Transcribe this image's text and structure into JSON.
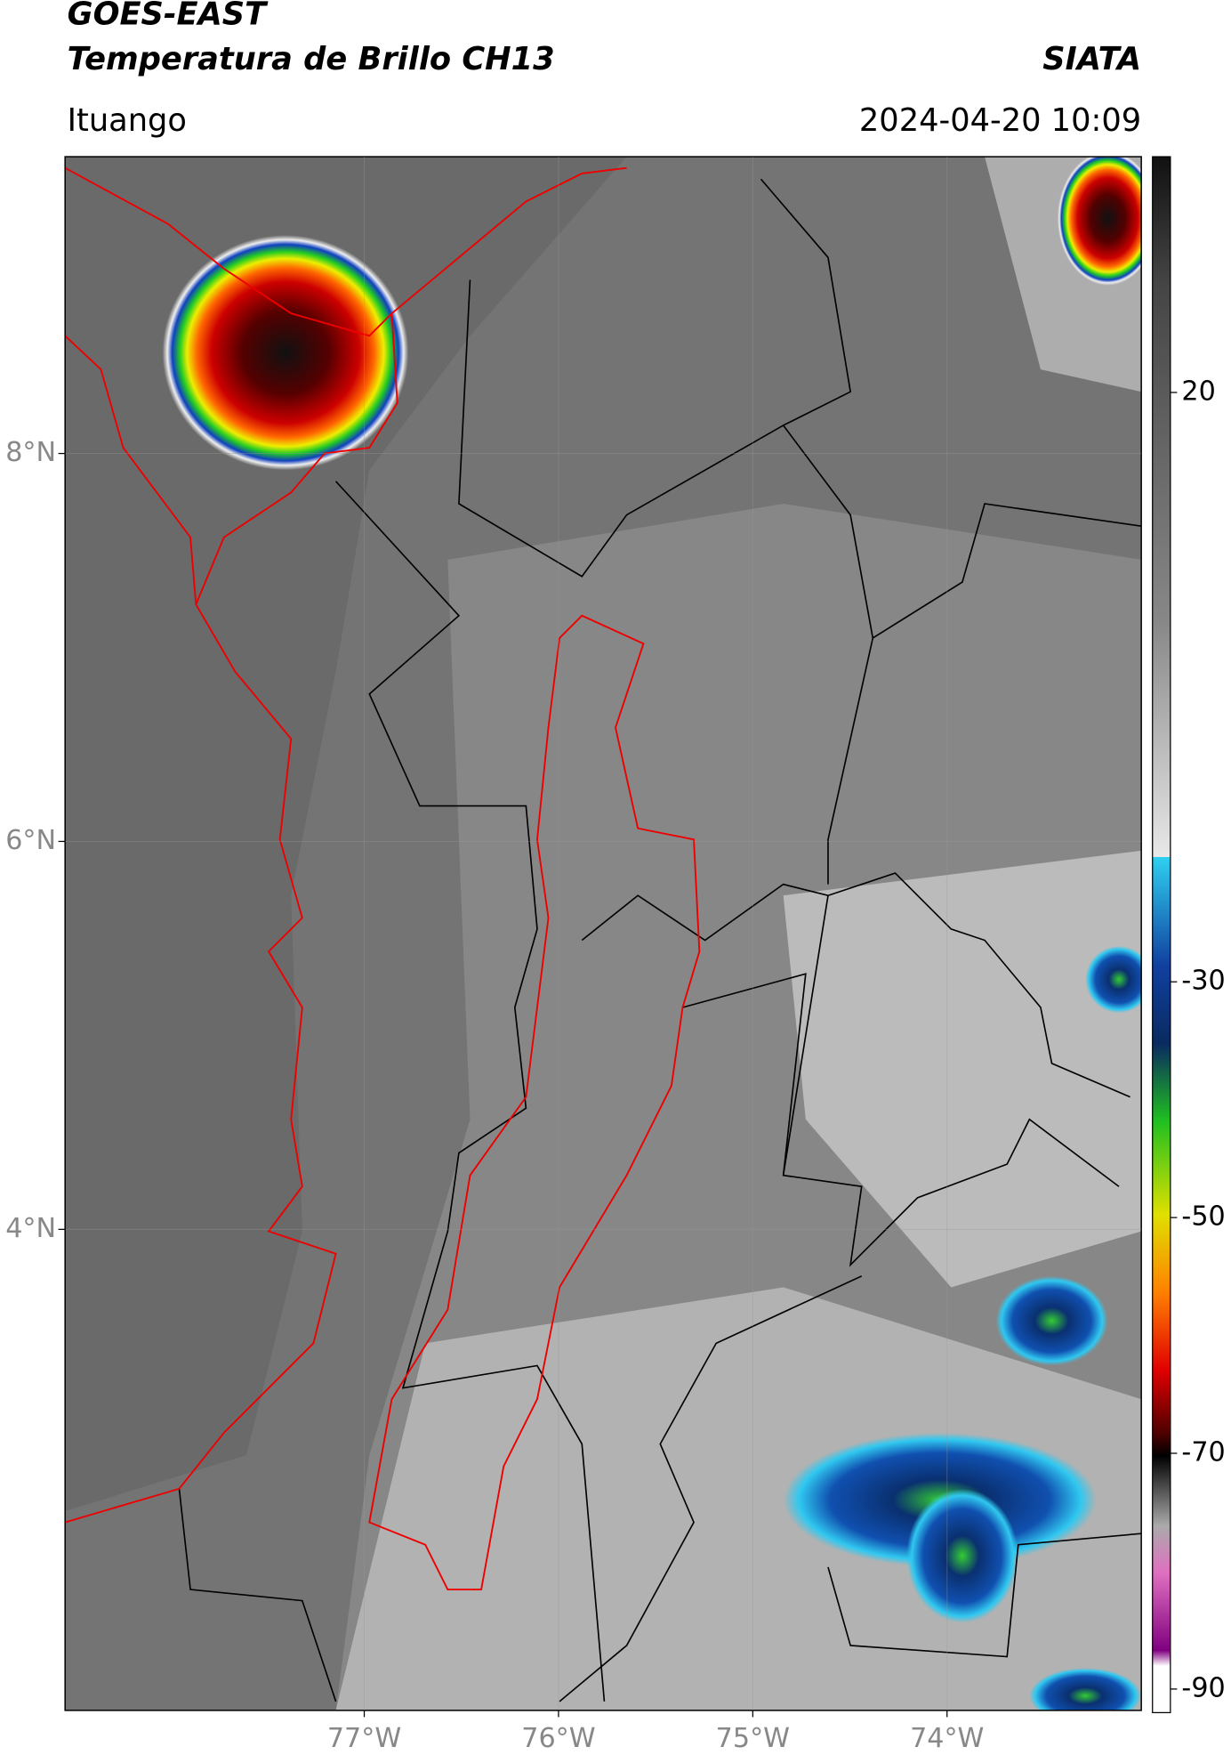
{
  "header": {
    "title": "GOES-EAST",
    "subtitle": "Temperatura de Brillo CH13",
    "brand": "SIATA",
    "location": "Ituango",
    "timestamp": "2024-04-20 10:09"
  },
  "map": {
    "lat_lim": [
      1.52,
      9.53
    ],
    "lon_lim": [
      -78.54,
      -73.0
    ],
    "lat_ticks": [
      {
        "value": 8,
        "label": "8°N"
      },
      {
        "value": 6,
        "label": "6°N"
      },
      {
        "value": 4,
        "label": "4°N"
      }
    ],
    "lon_ticks": [
      {
        "value": -77,
        "label": "77°W"
      },
      {
        "value": -76,
        "label": "76°W"
      },
      {
        "value": -75,
        "label": "75°W"
      },
      {
        "value": -74,
        "label": "74°W"
      }
    ]
  },
  "colorbar": {
    "lim": [
      40,
      -92
    ],
    "ticks": [
      20,
      -30,
      -50,
      -70,
      -90
    ]
  }
}
